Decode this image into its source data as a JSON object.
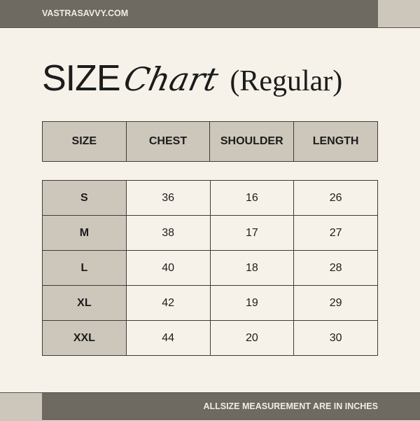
{
  "header": {
    "site": "VASTRASAVVY.COM"
  },
  "title": {
    "part1": "SIZE",
    "part2": "Chart",
    "part3": "(Regular)"
  },
  "table": {
    "columns": [
      "SIZE",
      "CHEST",
      "SHOULDER",
      "LENGTH"
    ],
    "rows": [
      [
        "S",
        "36",
        "16",
        "26"
      ],
      [
        "M",
        "38",
        "17",
        "27"
      ],
      [
        "L",
        "40",
        "18",
        "28"
      ],
      [
        "XL",
        "42",
        "19",
        "29"
      ],
      [
        "XXL",
        "44",
        "20",
        "30"
      ]
    ]
  },
  "footer": {
    "note": "ALLSIZE MEASUREMENT ARE IN INCHES"
  },
  "colors": {
    "dark": "#6e6a62",
    "accent": "#cdc7bb",
    "background": "#f6f2e9"
  }
}
